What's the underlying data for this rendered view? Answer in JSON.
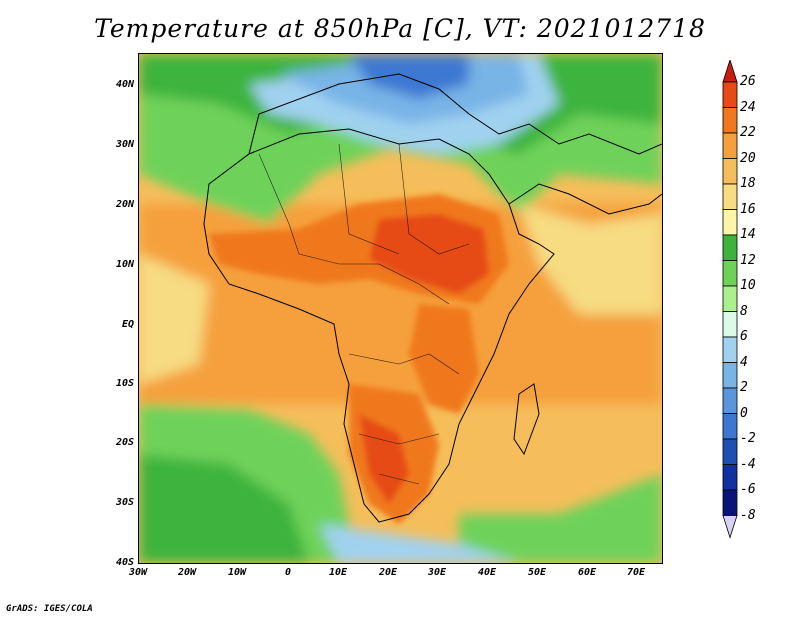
{
  "title": "Temperature at 850hPa [C], VT: 2021012718",
  "credit": "GrADS: IGES/COLA",
  "map": {
    "lat_labels": [
      "40N",
      "30N",
      "20N",
      "10N",
      "EQ",
      "10S",
      "20S",
      "30S",
      "40S"
    ],
    "lon_labels": [
      "30W",
      "20W",
      "10W",
      "0",
      "10E",
      "20E",
      "30E",
      "40E",
      "50E",
      "60E",
      "70E"
    ],
    "extent": {
      "lon_min": -30,
      "lon_max": 75,
      "lat_min": -40,
      "lat_max": 45
    }
  },
  "colorbar": {
    "levels": [
      "26",
      "24",
      "22",
      "20",
      "18",
      "16",
      "14",
      "12",
      "10",
      "8",
      "6",
      "4",
      "2",
      "0",
      "-2",
      "-4",
      "-6",
      "-8"
    ],
    "colors": [
      "#c81e0f",
      "#e64b14",
      "#f0781e",
      "#f5a03c",
      "#f5be5a",
      "#f7dc82",
      "#fcf5aa",
      "#3cb43c",
      "#6ed25a",
      "#aaf08c",
      "#dcfae6",
      "#a0d2f0",
      "#78b4e6",
      "#5a96dc",
      "#3c78d2",
      "#1e50b4",
      "#0f32a0",
      "#0a1478",
      "#d7d2f5"
    ]
  }
}
